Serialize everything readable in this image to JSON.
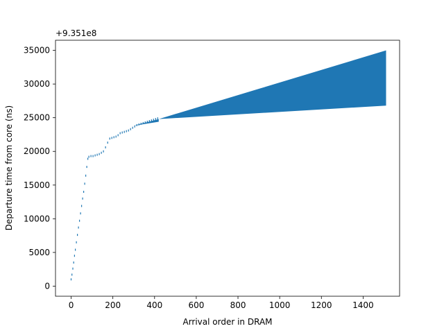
{
  "chart_data": {
    "type": "scatter",
    "xlabel": "Arrival order in DRAM",
    "ylabel": "Departure time from core (ns)",
    "offset_label": "+9.351e8",
    "xlim": [
      -75,
      1575
    ],
    "ylim": [
      -1500,
      36500
    ],
    "x_ticks": [
      0,
      200,
      400,
      600,
      800,
      1000,
      1200,
      1400
    ],
    "y_ticks": [
      0,
      5000,
      10000,
      15000,
      20000,
      25000,
      30000,
      35000
    ],
    "grid": false,
    "marker_color": "#1f77b4",
    "points": [
      [
        0,
        1000
      ],
      [
        4,
        1700
      ],
      [
        8,
        2600
      ],
      [
        12,
        3500
      ],
      [
        16,
        4500
      ],
      [
        20,
        5400
      ],
      [
        25,
        6500
      ],
      [
        30,
        7600
      ],
      [
        35,
        8700
      ],
      [
        40,
        9700
      ],
      [
        45,
        10800
      ],
      [
        50,
        11900
      ],
      [
        55,
        13000
      ],
      [
        60,
        14000
      ],
      [
        65,
        15200
      ],
      [
        70,
        16400
      ],
      [
        75,
        17700
      ],
      [
        80,
        18900
      ],
      [
        85,
        19200
      ],
      [
        95,
        19300
      ],
      [
        105,
        19300
      ],
      [
        115,
        19400
      ],
      [
        125,
        19500
      ],
      [
        135,
        19600
      ],
      [
        145,
        19800
      ],
      [
        155,
        20000
      ],
      [
        165,
        20600
      ],
      [
        175,
        21300
      ],
      [
        185,
        21900
      ],
      [
        195,
        22000
      ],
      [
        205,
        22100
      ],
      [
        215,
        22200
      ],
      [
        225,
        22400
      ],
      [
        235,
        22700
      ],
      [
        245,
        22800
      ],
      [
        255,
        22900
      ],
      [
        265,
        23000
      ],
      [
        275,
        23100
      ],
      [
        285,
        23300
      ],
      [
        295,
        23500
      ],
      [
        305,
        23700
      ],
      [
        315,
        23900
      ],
      [
        325,
        24000
      ],
      [
        335,
        24100
      ],
      [
        345,
        24200
      ],
      [
        355,
        24300
      ],
      [
        365,
        24400
      ],
      [
        375,
        24500
      ],
      [
        385,
        24600
      ],
      [
        395,
        24700
      ],
      [
        405,
        24800
      ],
      [
        415,
        24900
      ]
    ],
    "band": {
      "x_start": 300,
      "x_end": 1510,
      "lower": [
        [
          300,
          23800
        ],
        [
          420,
          24400
        ],
        [
          420,
          24800
        ],
        [
          1510,
          26800
        ]
      ],
      "upper": [
        [
          300,
          23800
        ],
        [
          420,
          24800
        ],
        [
          1510,
          35000
        ]
      ]
    }
  }
}
